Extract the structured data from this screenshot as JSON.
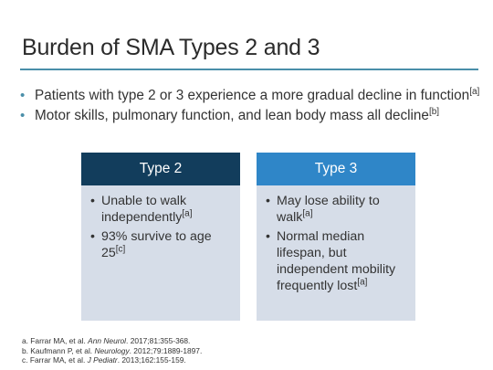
{
  "slide": {
    "title": "Burden of SMA Types 2 and 3",
    "accent_color": "#4a8fa9",
    "bullets": [
      {
        "text": "Patients with type 2 or 3 experience a more gradual decline in function",
        "ref": "[a]"
      },
      {
        "text": "Motor skills, pulmonary function, and lean body mass all decline",
        "ref": "[b]"
      }
    ],
    "columns": [
      {
        "header": "Type 2",
        "header_color": "#123d5c",
        "items": [
          {
            "text": "Unable to walk independently",
            "ref": "[a]"
          },
          {
            "text": "93% survive to age 25",
            "ref": "[c]"
          }
        ]
      },
      {
        "header": "Type 3",
        "header_color": "#2f86c8",
        "items": [
          {
            "text": "May lose ability to walk",
            "ref": "[a]"
          },
          {
            "text": "Normal median lifespan, but independent mobility frequently lost",
            "ref": "[a]"
          }
        ]
      }
    ],
    "references": [
      {
        "pre": "a. Farrar MA, et al. ",
        "journal": "Ann Neurol",
        "post": ". 2017;81:355-368."
      },
      {
        "pre": "b. Kaufmann P, et al. ",
        "journal": "Neurology",
        "post": ". 2012;79:1889-1897."
      },
      {
        "pre": "c. Farrar MA, et al. ",
        "journal": "J Pediatr",
        "post": ". 2013;162:155-159."
      }
    ]
  }
}
